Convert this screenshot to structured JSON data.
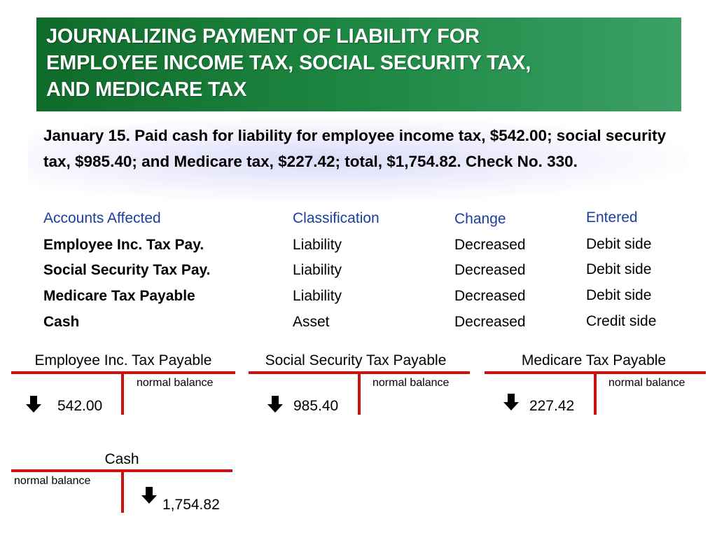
{
  "title": "JOURNALIZING PAYMENT OF LIABILITY FOR\nEMPLOYEE INCOME TAX, SOCIAL SECURITY TAX,\nAND MEDICARE TAX",
  "transaction": "January 15. Paid cash for liability for employee income tax, $542.00; social security tax, $985.40; and Medicare tax, $227.42; total, $1,754.82. Check No. 330.",
  "table": {
    "headers": [
      "Accounts Affected",
      "Classification",
      "Change",
      "Entered"
    ],
    "rows": [
      [
        "Employee Inc. Tax Pay.",
        "Liability",
        "Decreased",
        "Debit side"
      ],
      [
        "Social Security Tax Pay.",
        "Liability",
        "Decreased",
        "Debit side"
      ],
      [
        "Medicare Tax Payable",
        "Liability",
        "Decreased",
        "Debit side"
      ],
      [
        "Cash",
        "Asset",
        "Decreased",
        "Credit side"
      ]
    ]
  },
  "t_accounts": {
    "employee": {
      "title": "Employee Inc. Tax Payable",
      "normal_balance": "normal balance",
      "amount": "542.00"
    },
    "social": {
      "title": "Social Security Tax Payable",
      "normal_balance": "normal balance",
      "amount": "985.40"
    },
    "medicare": {
      "title": "Medicare Tax Payable",
      "normal_balance": "normal balance",
      "amount": "227.42"
    },
    "cash": {
      "title": "Cash",
      "normal_balance": "normal balance",
      "amount": "1,754.82"
    }
  },
  "colors": {
    "banner": "#1f8a45",
    "header_text": "#1a3fa0",
    "t_account_lines": "#cc1111"
  },
  "icons": {
    "decrease": "down-arrow-icon"
  }
}
